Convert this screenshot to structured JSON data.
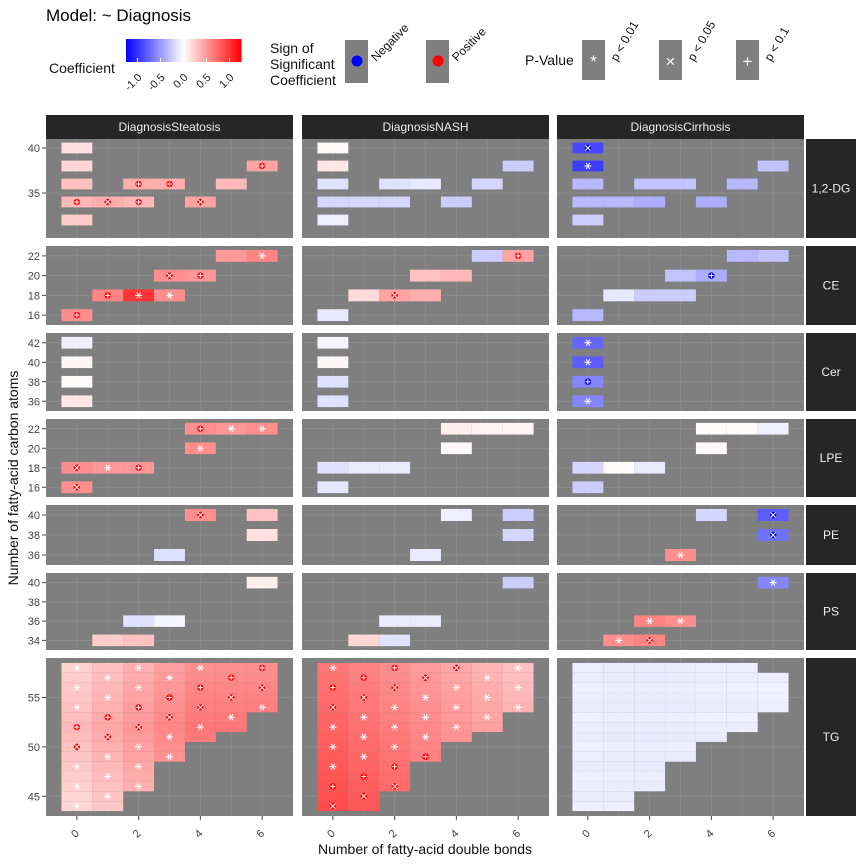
{
  "chart_data": {
    "type": "heatmap",
    "title": "Model: ~ Diagnosis",
    "xlabel": "Number of fatty-acid double bonds",
    "ylabel": "Number of fatty-acid carbon atoms",
    "x_ticks": [
      "0",
      "2",
      "4",
      "6"
    ],
    "columns": [
      "DiagnosisSteatosis",
      "DiagnosisNASH",
      "DiagnosisCirrhosis"
    ],
    "legend": {
      "coefficient_title": "Coefficient",
      "coefficient_ticks": [
        "-1.0",
        "-0.5",
        "0.0",
        "0.5",
        "1.0"
      ],
      "coefficient_range": [
        -1.25,
        1.25
      ],
      "colors": {
        "negative": "#0000ff",
        "zero": "#ffffff",
        "positive": "#ff0000",
        "panel_bg": "#7f7f7f",
        "strip_bg": "#262626"
      },
      "sign_title": "Sign of Significant Coefficient",
      "sign_items": [
        "Negative",
        "Positive"
      ],
      "pvalue_title": "P-Value",
      "pvalue_items": [
        {
          "symbol": "*",
          "label": "p < 0.01"
        },
        {
          "symbol": "x",
          "label": "p < 0.05"
        },
        {
          "symbol": "+",
          "label": "p < 0.1"
        }
      ]
    },
    "rows": [
      {
        "name": "1,2-DG",
        "y_ticks": [
          "35",
          "40"
        ],
        "ylim": [
          30,
          41
        ],
        "cells": [
          [
            [
              0,
              40,
              0.15
            ],
            [
              0,
              38,
              0.2
            ],
            [
              0,
              36,
              0.3
            ],
            [
              0,
              34,
              0.35,
              "+"
            ],
            [
              1,
              34,
              0.4,
              "x"
            ],
            [
              2,
              34,
              0.35,
              "+"
            ],
            [
              4,
              34,
              0.45,
              "x"
            ],
            [
              0,
              32,
              0.25
            ],
            [
              2,
              36,
              0.4,
              "+"
            ],
            [
              3,
              36,
              0.4,
              "+"
            ],
            [
              5,
              36,
              0.35
            ],
            [
              6,
              38,
              0.45,
              "+"
            ]
          ],
          [
            [
              0,
              40,
              0.03
            ],
            [
              0,
              38,
              0.12
            ],
            [
              0,
              36,
              -0.15
            ],
            [
              0,
              34,
              -0.2
            ],
            [
              1,
              34,
              -0.2
            ],
            [
              2,
              34,
              -0.2
            ],
            [
              4,
              34,
              -0.25
            ],
            [
              0,
              32,
              -0.08
            ],
            [
              2,
              36,
              -0.15
            ],
            [
              3,
              36,
              -0.12
            ],
            [
              5,
              36,
              -0.2
            ],
            [
              6,
              38,
              -0.25
            ]
          ],
          [
            [
              0,
              40,
              -0.9,
              "x"
            ],
            [
              0,
              38,
              -0.95,
              "*"
            ],
            [
              0,
              36,
              -0.35
            ],
            [
              0,
              34,
              -0.35
            ],
            [
              1,
              34,
              -0.35
            ],
            [
              2,
              34,
              -0.4
            ],
            [
              4,
              34,
              -0.4
            ],
            [
              0,
              32,
              -0.25
            ],
            [
              2,
              36,
              -0.3
            ],
            [
              3,
              36,
              -0.3
            ],
            [
              5,
              36,
              -0.35
            ],
            [
              6,
              38,
              -0.3
            ]
          ]
        ]
      },
      {
        "name": "CE",
        "y_ticks": [
          "16",
          "18",
          "20",
          "22"
        ],
        "ylim": [
          15,
          23
        ],
        "cells": [
          [
            [
              0,
              16,
              0.55,
              "+"
            ],
            [
              1,
              18,
              0.6,
              "+"
            ],
            [
              2,
              18,
              1.0,
              "*"
            ],
            [
              3,
              18,
              0.55,
              "*"
            ],
            [
              3,
              20,
              0.55,
              "x"
            ],
            [
              4,
              20,
              0.5,
              "+"
            ],
            [
              5,
              22,
              0.5
            ],
            [
              6,
              22,
              0.6,
              "*"
            ]
          ],
          [
            [
              0,
              16,
              -0.12
            ],
            [
              1,
              18,
              0.18
            ],
            [
              2,
              18,
              0.45,
              "x"
            ],
            [
              3,
              18,
              0.4
            ],
            [
              3,
              20,
              0.3
            ],
            [
              4,
              20,
              0.35
            ],
            [
              5,
              22,
              -0.25
            ],
            [
              6,
              22,
              0.45,
              "+"
            ]
          ],
          [
            [
              0,
              16,
              -0.35
            ],
            [
              1,
              18,
              -0.12
            ],
            [
              2,
              18,
              -0.25
            ],
            [
              3,
              18,
              -0.25
            ],
            [
              3,
              20,
              -0.3
            ],
            [
              4,
              20,
              -0.4,
              "+"
            ],
            [
              5,
              22,
              -0.35
            ],
            [
              6,
              22,
              -0.3
            ]
          ]
        ]
      },
      {
        "name": "Cer",
        "y_ticks": [
          "36",
          "38",
          "40",
          "42"
        ],
        "ylim": [
          35,
          43
        ],
        "cells": [
          [
            [
              0,
              42,
              -0.08
            ],
            [
              0,
              40,
              0.05
            ],
            [
              0,
              38,
              0.02
            ],
            [
              0,
              36,
              0.12
            ]
          ],
          [
            [
              0,
              42,
              -0.05
            ],
            [
              0,
              40,
              0.04
            ],
            [
              0,
              38,
              -0.15
            ],
            [
              0,
              36,
              -0.15
            ]
          ],
          [
            [
              0,
              42,
              -0.75,
              "*"
            ],
            [
              0,
              40,
              -0.8,
              "*"
            ],
            [
              0,
              38,
              -0.6,
              "+"
            ],
            [
              0,
              36,
              -0.6,
              "*"
            ]
          ]
        ]
      },
      {
        "name": "LPE",
        "y_ticks": [
          "16",
          "18",
          "20",
          "22"
        ],
        "ylim": [
          15,
          23
        ],
        "cells": [
          [
            [
              0,
              16,
              0.55,
              "x"
            ],
            [
              0,
              18,
              0.55,
              "x"
            ],
            [
              1,
              18,
              0.5,
              "*"
            ],
            [
              2,
              18,
              0.5,
              "+"
            ],
            [
              4,
              20,
              0.55,
              "*"
            ],
            [
              4,
              22,
              0.55,
              "+"
            ],
            [
              5,
              22,
              0.5,
              "*"
            ],
            [
              6,
              22,
              0.55,
              "*"
            ]
          ],
          [
            [
              0,
              16,
              -0.12
            ],
            [
              0,
              18,
              -0.15
            ],
            [
              1,
              18,
              -0.1
            ],
            [
              2,
              18,
              -0.1
            ],
            [
              4,
              20,
              0.03
            ],
            [
              4,
              22,
              0.08
            ],
            [
              5,
              22,
              0.06
            ],
            [
              6,
              22,
              0.05
            ]
          ],
          [
            [
              0,
              16,
              -0.25
            ],
            [
              0,
              18,
              -0.2
            ],
            [
              1,
              18,
              0.02
            ],
            [
              2,
              18,
              -0.1
            ],
            [
              4,
              20,
              0.03
            ],
            [
              4,
              22,
              0.02
            ],
            [
              5,
              22,
              0.02
            ],
            [
              6,
              22,
              -0.08
            ]
          ]
        ]
      },
      {
        "name": "PE",
        "y_ticks": [
          "36",
          "38",
          "40"
        ],
        "ylim": [
          35,
          41
        ],
        "cells": [
          [
            [
              3,
              36,
              -0.15
            ],
            [
              4,
              40,
              0.55,
              "x"
            ],
            [
              6,
              38,
              0.15
            ],
            [
              6,
              40,
              0.3
            ]
          ],
          [
            [
              3,
              36,
              -0.1
            ],
            [
              4,
              40,
              -0.08
            ],
            [
              6,
              38,
              -0.2
            ],
            [
              6,
              40,
              -0.25
            ]
          ],
          [
            [
              3,
              36,
              0.55,
              "*"
            ],
            [
              4,
              40,
              -0.2
            ],
            [
              6,
              38,
              -0.7,
              "x"
            ],
            [
              6,
              40,
              -0.8,
              "x"
            ]
          ]
        ]
      },
      {
        "name": "PS",
        "y_ticks": [
          "34",
          "36",
          "38",
          "40"
        ],
        "ylim": [
          33,
          41
        ],
        "cells": [
          [
            [
              1,
              34,
              0.25
            ],
            [
              2,
              34,
              0.3
            ],
            [
              2,
              36,
              -0.15
            ],
            [
              3,
              36,
              -0.05
            ],
            [
              6,
              40,
              0.08
            ]
          ],
          [
            [
              1,
              34,
              0.2
            ],
            [
              2,
              34,
              -0.15
            ],
            [
              2,
              36,
              -0.1
            ],
            [
              3,
              36,
              -0.1
            ],
            [
              6,
              40,
              -0.25
            ]
          ],
          [
            [
              1,
              34,
              0.55,
              "*"
            ],
            [
              2,
              34,
              0.6,
              "x"
            ],
            [
              2,
              36,
              0.6,
              "*"
            ],
            [
              3,
              36,
              0.55,
              "*"
            ],
            [
              6,
              40,
              -0.6,
              "*"
            ]
          ]
        ]
      },
      {
        "name": "TG",
        "y_ticks": [
          "45",
          "50",
          "55"
        ],
        "ylim": [
          43,
          59
        ],
        "region": {
          "d_min": 0,
          "d_max": 6,
          "c_min": 44,
          "c_max": 58
        }
      }
    ]
  }
}
